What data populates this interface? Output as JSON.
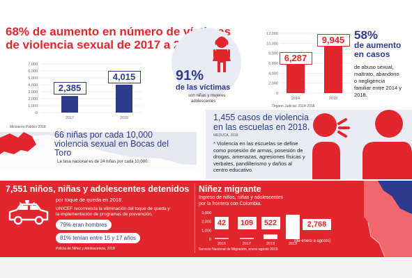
{
  "headline": {
    "line1": "68% de aumento en número de víctimas",
    "line2": "de violencia sexual de 2017 a 2018"
  },
  "left_chart_source": "Ministerio Público 2018",
  "victims": {
    "percent": "91%",
    "label": "de las víctimas",
    "sub1": "son niñas y mujeres",
    "sub2": "adolescentes"
  },
  "right_chart_source": "Órgano Judicial, 2014-2018",
  "increase": {
    "percent": "58%",
    "line1": "de aumento",
    "line2": "en casos",
    "desc1": "de abuso sexual,",
    "desc2": "maltrato, abandono",
    "desc3": "o negligencia",
    "desc4": "familiar entre 2014 y",
    "desc5": "2018."
  },
  "bocas": {
    "line1": "66 niñas por cada 10,000",
    "line2": "violencia sexual en Bocas del",
    "line3": "Toro",
    "note": "La tasa nacional es de 24 niñas por cada 10,000."
  },
  "schools": {
    "line1": "1,455 casos de violencia",
    "line2": "en las escuelas en 2018.",
    "source": "MEDUCA, 2018",
    "b1": "* Violencia en las escuelas se define",
    "b2": "como posesión de armas, posesión de",
    "b3": "drogas, amenazas, agresiones físicas y",
    "b4": "verbales, pandillerismo y daños al",
    "b5": "centro educativo."
  },
  "detained": {
    "title": "7,551 niños, niñas y adolescentes detenidos",
    "sub": "por toque de queda en 2018.",
    "u1": "UNICEF recomienda la eliminación del toque de queda y",
    "u2": "la implementación de programas de prevención.",
    "stat1": "79% eran hombres",
    "stat2": "81% tenían entre 15 y 17 años",
    "source": "Policía de Niñez y Adolescencia, 2018"
  },
  "migrant": {
    "title": "Niñez migrante",
    "d1": "Ingreso de niños, niñas y adolescentes",
    "d2": "por la frontera con Colombia.",
    "note2019": "(de enero a agosto)",
    "source": "Servicio Nacional de Migración, enero-agosto 2019"
  },
  "chart_data": [
    {
      "type": "bar",
      "categories": [
        "2017",
        "2018"
      ],
      "values": [
        2385,
        4015
      ],
      "value_labels": [
        "2,385",
        "4,015"
      ],
      "ylim": [
        0,
        7000
      ],
      "yticks": [
        "0",
        "1,000",
        "2,000",
        "3,000",
        "4,000",
        "5,000",
        "6,000",
        "7,000"
      ],
      "color": "#2e3a8c"
    },
    {
      "type": "bar",
      "categories": [
        "2014",
        "2018"
      ],
      "values": [
        6287,
        9945
      ],
      "value_labels": [
        "6,287",
        "9,945"
      ],
      "ylim": [
        0,
        12000
      ],
      "yticks": [
        "0",
        "2,000",
        "4,000",
        "6,000",
        "8,000",
        "10,000",
        "12,000"
      ],
      "color": "#e2262e"
    },
    {
      "type": "bar",
      "categories": [
        "2016",
        "2017",
        "2018",
        "2019"
      ],
      "values": [
        42,
        109,
        522,
        2768
      ],
      "value_labels": [
        "42",
        "109",
        "522",
        "2,768"
      ],
      "ylim": [
        0,
        3000
      ],
      "yticks": [
        "0",
        "1,000",
        "2,000",
        "3,000"
      ],
      "color": "#ffffff"
    }
  ]
}
